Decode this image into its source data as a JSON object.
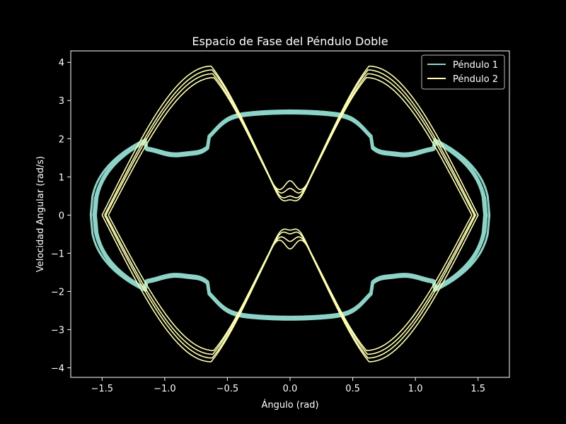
{
  "chart_data": {
    "type": "line",
    "title": "Espacio de Fase del Péndulo Doble",
    "xlabel": "Ángulo (rad)",
    "ylabel": "Velocidad Angular (rad/s)",
    "xlim": [
      -1.75,
      1.75
    ],
    "ylim": [
      -4.25,
      4.3
    ],
    "xticks": [
      -1.5,
      -1.0,
      -0.5,
      0.0,
      0.5,
      1.0,
      1.5
    ],
    "xtick_labels": [
      "−1.5",
      "−1.0",
      "−0.5",
      "0.0",
      "0.5",
      "1.0",
      "1.5"
    ],
    "yticks": [
      -4,
      -3,
      -2,
      -1,
      0,
      1,
      2,
      3,
      4
    ],
    "ytick_labels": [
      "−4",
      "−3",
      "−2",
      "−1",
      "0",
      "1",
      "2",
      "3",
      "4"
    ],
    "grid": false,
    "legend_position": "top-right",
    "background": "#000000",
    "series": [
      {
        "name": "Péndulo 1",
        "color": "#8dd3c7",
        "amplitude_rad": 1.57,
        "loops": [
          {
            "amplitude_rad": 1.57
          },
          {
            "amplitude_rad": 1.55
          },
          {
            "amplitude_rad": 1.59
          },
          {
            "amplitude_rad": 1.56
          }
        ],
        "key_points": [
          {
            "x": 0.0,
            "y": 2.7
          },
          {
            "x": -0.7,
            "y": 1.52
          },
          {
            "x": -1.0,
            "y": 1.55
          },
          {
            "x": -1.57,
            "y": 0.0
          },
          {
            "x": -0.7,
            "y": -1.52
          },
          {
            "x": 0.0,
            "y": -2.7
          },
          {
            "x": 0.7,
            "y": -1.52
          },
          {
            "x": 1.57,
            "y": 0.0
          },
          {
            "x": 0.7,
            "y": 1.52
          }
        ]
      },
      {
        "name": "Péndulo 2",
        "color": "#ffffb3",
        "loops": [
          {
            "peak_y": 3.9,
            "dip_y": 0.5,
            "amplitude_rad": 1.5
          },
          {
            "peak_y": 3.8,
            "dip_y": 0.7,
            "amplitude_rad": 1.48
          },
          {
            "peak_y": 3.7,
            "dip_y": 0.4,
            "amplitude_rad": 1.47
          },
          {
            "peak_y": 3.6,
            "dip_y": 0.9,
            "amplitude_rad": 1.45
          }
        ],
        "key_points": [
          {
            "x": -0.7,
            "y": 3.9
          },
          {
            "x": 0.7,
            "y": 3.9
          },
          {
            "x": 0.0,
            "y": 0.5
          },
          {
            "x": -1.5,
            "y": 0.0
          },
          {
            "x": 1.5,
            "y": 0.0
          },
          {
            "x": -0.7,
            "y": -3.85
          },
          {
            "x": 0.7,
            "y": -3.85
          },
          {
            "x": 0.0,
            "y": -0.5
          }
        ]
      }
    ]
  }
}
